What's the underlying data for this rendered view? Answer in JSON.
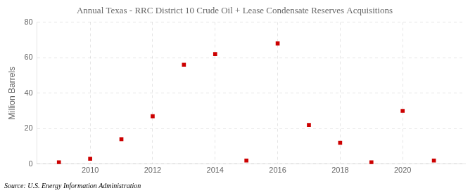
{
  "chart_data": {
    "type": "scatter",
    "title": "Annual Texas - RRC District 10 Crude Oil + Lease Condensate Reserves Acquisitions",
    "ylabel": "Million Barrels",
    "annotations": [
      "Source: U.S. Energy Information Administration"
    ],
    "x": [
      2009,
      2010,
      2011,
      2012,
      2013,
      2014,
      2015,
      2016,
      2017,
      2018,
      2019,
      2020,
      2021
    ],
    "values": [
      1.0,
      3.0,
      14.0,
      27.0,
      56.0,
      62.0,
      2.0,
      68.0,
      22.0,
      12.0,
      1.0,
      30.0,
      2.0
    ],
    "color": "#CC0000",
    "marker": "square",
    "xlim": [
      2008.3,
      2022.0
    ],
    "ylim": [
      0,
      80
    ],
    "xticks": [
      2010,
      2012,
      2014,
      2016,
      2018,
      2020
    ],
    "yticks": [
      0,
      20,
      40,
      60,
      80
    ],
    "grid": true
  }
}
